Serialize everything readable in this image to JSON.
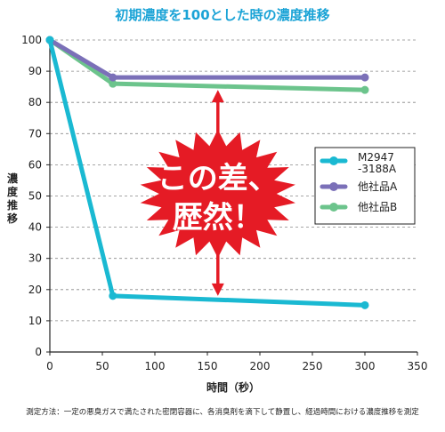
{
  "chart_data": {
    "type": "line",
    "title": "初期濃度を100とした時の濃度推移",
    "xlabel": "時間（秒）",
    "ylabel": "濃度推移",
    "xlim": [
      0,
      350
    ],
    "ylim": [
      0,
      100
    ],
    "xticks": [
      "0",
      "50",
      "100",
      "150",
      "200",
      "250",
      "300",
      "350"
    ],
    "yticks": [
      "0",
      "10",
      "20",
      "30",
      "40",
      "50",
      "60",
      "70",
      "80",
      "90",
      "100"
    ],
    "grid": "horizontal dashed",
    "legend_position": "right",
    "series": [
      {
        "name": "M2947\n-3188A",
        "color": "#1ab9d2",
        "points": [
          [
            0,
            100
          ],
          [
            60,
            18
          ],
          [
            300,
            15
          ]
        ]
      },
      {
        "name": "他社品A",
        "color": "#7b70b8",
        "points": [
          [
            0,
            100
          ],
          [
            60,
            88
          ],
          [
            300,
            88
          ]
        ]
      },
      {
        "name": "他社品B",
        "color": "#6cc48c",
        "points": [
          [
            0,
            100
          ],
          [
            60,
            86
          ],
          [
            300,
            84
          ]
        ]
      }
    ],
    "annotation": {
      "lines": [
        "この差、",
        "歴然！"
      ],
      "arrow_x": 160,
      "arrow_from": 84,
      "arrow_to": 18,
      "burst_color": "#e51b25",
      "arrow_color": "#e51b25"
    },
    "footnote": "測定方法：一定の悪臭ガスで満たされた密閉容器に、各消臭剤を滴下して静置し、経過時間における濃度推移を測定"
  }
}
